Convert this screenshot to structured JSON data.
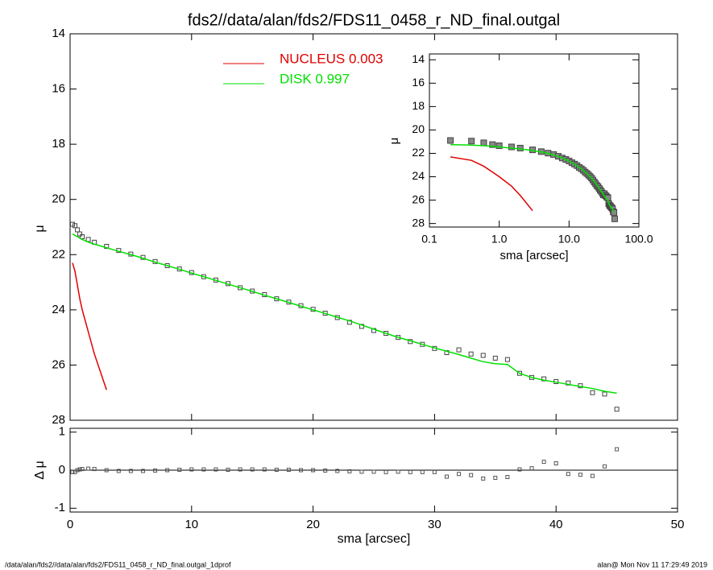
{
  "title": "fds2//data/alan/fds2/FDS11_0458_r_ND_final.outgal",
  "footer_left": "/data/alan/fds2//data/alan/fds2/FDS11_0458_r_ND_final.outgal_1dprof",
  "footer_right": "alan@  Mon Nov 11 17:29:49 2019",
  "chart_data": [
    {
      "type": "line",
      "ylabel": "μ",
      "xlim": [
        0,
        50
      ],
      "ylim": [
        28,
        14
      ],
      "yticks": [
        14,
        16,
        18,
        20,
        22,
        24,
        26,
        28
      ],
      "x": [
        0.2,
        0.4,
        0.6,
        0.8,
        1,
        1.5,
        2,
        3,
        4,
        5,
        6,
        7,
        8,
        9,
        10,
        11,
        12,
        13,
        14,
        15,
        16,
        17,
        18,
        19,
        20,
        21,
        22,
        23,
        24,
        25,
        26,
        27,
        28,
        29,
        30,
        31,
        32,
        33,
        34,
        35,
        36,
        37,
        38,
        39,
        40,
        41,
        42,
        43,
        44,
        45
      ],
      "series": [
        {
          "color": "#444444",
          "marker": "square",
          "values": [
            20.9,
            20.95,
            21.1,
            21.25,
            21.35,
            21.45,
            21.55,
            21.7,
            21.85,
            21.98,
            22.1,
            22.25,
            22.4,
            22.52,
            22.65,
            22.8,
            22.92,
            23.05,
            23.2,
            23.32,
            23.45,
            23.6,
            23.72,
            23.85,
            23.98,
            24.12,
            24.28,
            24.45,
            24.6,
            24.75,
            24.85,
            25.0,
            25.15,
            25.25,
            25.4,
            25.55,
            25.45,
            25.6,
            25.65,
            25.75,
            25.8,
            26.3,
            26.45,
            26.5,
            26.6,
            26.65,
            26.75,
            27.0,
            27.05,
            27.6
          ]
        },
        {
          "name": "NUCLEUS  0.003",
          "color": "#e00000",
          "values": [
            22.3,
            22.6,
            23.1,
            23.6,
            24.0,
            24.8,
            25.6,
            26.9,
            null,
            null,
            null,
            null,
            null,
            null,
            null,
            null,
            null,
            null,
            null,
            null,
            null,
            null,
            null,
            null,
            null,
            null,
            null,
            null,
            null,
            null,
            null,
            null,
            null,
            null,
            null,
            null,
            null,
            null,
            null,
            null,
            null,
            null,
            null,
            null,
            null,
            null,
            null,
            null,
            null,
            null
          ]
        },
        {
          "name": "DISK  0.997",
          "color": "#00e000",
          "values": [
            21.25,
            21.3,
            21.35,
            21.4,
            21.45,
            21.55,
            21.62,
            21.75,
            21.88,
            22.0,
            22.13,
            22.27,
            22.4,
            22.53,
            22.67,
            22.8,
            22.93,
            23.07,
            23.2,
            23.33,
            23.47,
            23.6,
            23.73,
            23.87,
            24.0,
            24.13,
            24.27,
            24.4,
            24.55,
            24.7,
            24.85,
            25.0,
            25.12,
            25.25,
            25.38,
            25.5,
            25.62,
            25.75,
            25.88,
            25.95,
            25.98,
            26.3,
            26.45,
            26.55,
            26.62,
            26.7,
            26.78,
            26.85,
            26.95,
            27.02
          ]
        }
      ]
    },
    {
      "type": "scatter",
      "xlabel": "sma [arcsec]",
      "ylabel": "Δ μ",
      "xlim": [
        0,
        50
      ],
      "xticks": [
        0,
        10,
        20,
        30,
        40,
        50
      ],
      "ylim": [
        -1.1,
        1.1
      ],
      "yticks": [
        1,
        0,
        -1
      ],
      "reference_line": 0,
      "color": "#555555",
      "x": [
        0.2,
        0.4,
        0.6,
        0.8,
        1,
        1.5,
        2,
        3,
        4,
        5,
        6,
        7,
        8,
        9,
        10,
        11,
        12,
        13,
        14,
        15,
        16,
        17,
        18,
        19,
        20,
        21,
        22,
        23,
        24,
        25,
        26,
        27,
        28,
        29,
        30,
        31,
        32,
        33,
        34,
        35,
        36,
        37,
        38,
        39,
        40,
        41,
        42,
        43,
        44,
        45
      ],
      "values": [
        -0.05,
        -0.05,
        0,
        0.02,
        0.03,
        0.04,
        0.03,
        0,
        -0.02,
        -0.02,
        -0.02,
        -0.01,
        0,
        0.01,
        0.02,
        0.02,
        0.02,
        0.01,
        0.02,
        0.02,
        0.02,
        0.01,
        0.01,
        0,
        0,
        -0.01,
        -0.02,
        -0.03,
        -0.04,
        -0.04,
        -0.05,
        -0.04,
        -0.05,
        -0.05,
        -0.05,
        -0.17,
        -0.1,
        -0.13,
        -0.22,
        -0.2,
        -0.18,
        0.02,
        0.05,
        0.22,
        0.18,
        -0.1,
        -0.12,
        -0.15,
        0.1,
        0.55
      ]
    },
    {
      "type": "inset",
      "xlabel": "sma [arcsec]",
      "ylabel": "μ",
      "xlog": true,
      "xlim": [
        0.1,
        100
      ],
      "xticks": [
        0.1,
        {
          "value": 1,
          "label": "1.0"
        },
        {
          "value": 10,
          "label": "10.0"
        },
        {
          "value": 100,
          "label": "100.0"
        }
      ],
      "ylim": [
        28.3,
        13.5
      ],
      "yticks": [
        14,
        16,
        18,
        20,
        22,
        24,
        26,
        28
      ]
    }
  ]
}
